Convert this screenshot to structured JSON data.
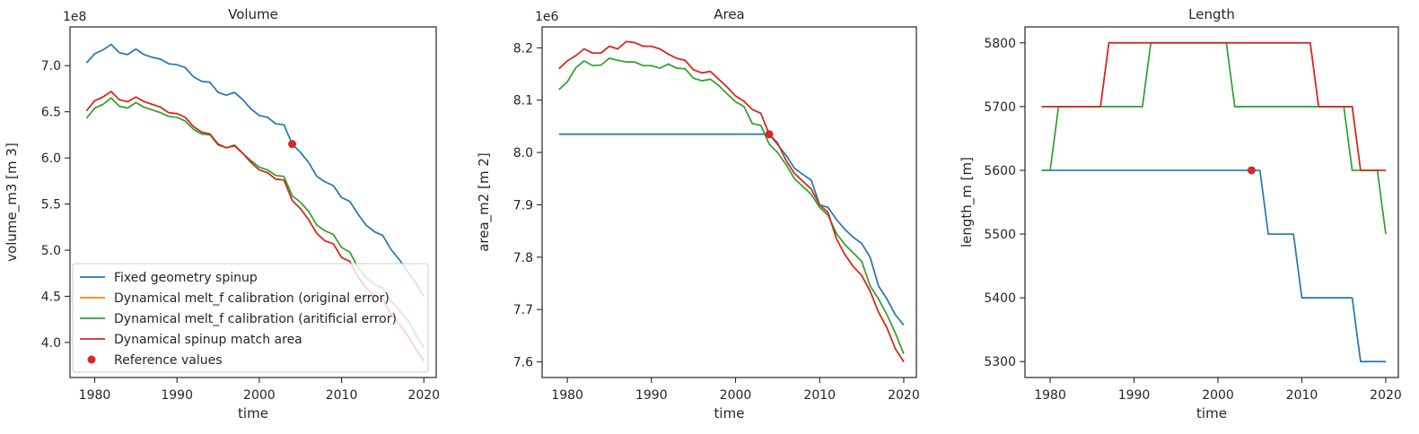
{
  "colors": {
    "fixed": "#1f77b4",
    "orig": "#ff7f0e",
    "artif": "#2ca02c",
    "match": "#d62728",
    "ref": "#d62728"
  },
  "legend": {
    "placement": "lower-left",
    "entries": [
      {
        "key": "fixed",
        "label": "Fixed geometry spinup"
      },
      {
        "key": "orig",
        "label": "Dynamical melt_f calibration (original error)"
      },
      {
        "key": "artif",
        "label": "Dynamical melt_f calibration (aritificial error)"
      },
      {
        "key": "match",
        "label": "Dynamical spinup match area"
      },
      {
        "key": "ref",
        "label": "Reference values"
      }
    ]
  },
  "chart_data": [
    {
      "type": "line",
      "title": "Volume",
      "xlabel": "time",
      "ylabel": "volume_m3 [m 3]",
      "offset_label": "1e8",
      "scale": 100000000,
      "xlim": [
        1977,
        2021.5
      ],
      "ylim": [
        3.62,
        7.42
      ],
      "xticks": [
        1980,
        1990,
        2000,
        2010,
        2020
      ],
      "yticks": [
        4.0,
        4.5,
        5.0,
        5.5,
        6.0,
        6.5,
        7.0
      ],
      "ytick_labels": [
        "4.0",
        "4.5",
        "5.0",
        "5.5",
        "6.0",
        "6.5",
        "7.0"
      ],
      "x": [
        1979,
        1980,
        1981,
        1982,
        1983,
        1984,
        1985,
        1986,
        1987,
        1988,
        1989,
        1990,
        1991,
        1992,
        1993,
        1994,
        1995,
        1996,
        1997,
        1998,
        1999,
        2000,
        2001,
        2002,
        2003,
        2004,
        2005,
        2006,
        2007,
        2008,
        2009,
        2010,
        2011,
        2012,
        2013,
        2014,
        2015,
        2016,
        2017,
        2018,
        2019,
        2020
      ],
      "series": [
        {
          "key": "fixed",
          "values": [
            7.03,
            7.13,
            7.17,
            7.23,
            7.14,
            7.12,
            7.18,
            7.12,
            7.09,
            7.07,
            7.02,
            7.01,
            6.98,
            6.88,
            6.83,
            6.82,
            6.71,
            6.68,
            6.71,
            6.63,
            6.53,
            6.46,
            6.44,
            6.37,
            6.36,
            6.15,
            6.06,
            5.95,
            5.8,
            5.74,
            5.7,
            5.57,
            5.53,
            5.39,
            5.27,
            5.2,
            5.16,
            5.01,
            4.9,
            4.77,
            4.65,
            4.5
          ]
        },
        {
          "key": "orig",
          "values": [
            6.51,
            6.62,
            6.66,
            6.72,
            6.63,
            6.61,
            6.66,
            6.61,
            6.58,
            6.55,
            6.49,
            6.48,
            6.44,
            6.34,
            6.28,
            6.26,
            6.15,
            6.11,
            6.13,
            6.05,
            5.95,
            5.87,
            5.84,
            5.77,
            5.76,
            5.54,
            5.45,
            5.33,
            5.18,
            5.1,
            5.07,
            4.92,
            4.88,
            4.71,
            4.59,
            4.51,
            4.47,
            4.31,
            4.2,
            4.08,
            3.93,
            3.8
          ]
        },
        {
          "key": "artif",
          "values": [
            6.43,
            6.54,
            6.58,
            6.65,
            6.56,
            6.54,
            6.6,
            6.55,
            6.52,
            6.49,
            6.45,
            6.44,
            6.4,
            6.31,
            6.26,
            6.25,
            6.14,
            6.11,
            6.14,
            6.05,
            5.97,
            5.9,
            5.87,
            5.81,
            5.8,
            5.59,
            5.52,
            5.42,
            5.27,
            5.21,
            5.17,
            5.03,
            4.98,
            4.81,
            4.7,
            4.63,
            4.59,
            4.45,
            4.35,
            4.25,
            4.09,
            3.94
          ]
        },
        {
          "key": "match",
          "values": [
            6.51,
            6.62,
            6.66,
            6.72,
            6.63,
            6.61,
            6.66,
            6.61,
            6.58,
            6.55,
            6.49,
            6.48,
            6.44,
            6.34,
            6.28,
            6.26,
            6.15,
            6.11,
            6.13,
            6.05,
            5.95,
            5.87,
            5.84,
            5.77,
            5.76,
            5.54,
            5.45,
            5.33,
            5.18,
            5.1,
            5.07,
            4.92,
            4.88,
            4.71,
            4.59,
            4.51,
            4.47,
            4.31,
            4.2,
            4.08,
            3.93,
            3.8
          ]
        }
      ],
      "reference": {
        "x": 2004,
        "y": 6.15
      }
    },
    {
      "type": "line",
      "title": "Area",
      "xlabel": "time",
      "ylabel": "area_m2 [m 2]",
      "offset_label": "1e6",
      "scale": 1000000,
      "xlim": [
        1977,
        2021.5
      ],
      "ylim": [
        7.57,
        8.24
      ],
      "xticks": [
        1980,
        1990,
        2000,
        2010,
        2020
      ],
      "yticks": [
        7.6,
        7.7,
        7.8,
        7.9,
        8.0,
        8.1,
        8.2
      ],
      "ytick_labels": [
        "7.6",
        "7.7",
        "7.8",
        "7.9",
        "8.0",
        "8.1",
        "8.2"
      ],
      "x": [
        1979,
        1980,
        1981,
        1982,
        1983,
        1984,
        1985,
        1986,
        1987,
        1988,
        1989,
        1990,
        1991,
        1992,
        1993,
        1994,
        1995,
        1996,
        1997,
        1998,
        1999,
        2000,
        2001,
        2002,
        2003,
        2004,
        2005,
        2006,
        2007,
        2008,
        2009,
        2010,
        2011,
        2012,
        2013,
        2014,
        2015,
        2016,
        2017,
        2018,
        2019,
        2020
      ],
      "series": [
        {
          "key": "fixed",
          "values": [
            8.035,
            8.035,
            8.035,
            8.035,
            8.035,
            8.035,
            8.035,
            8.035,
            8.035,
            8.035,
            8.035,
            8.035,
            8.035,
            8.035,
            8.035,
            8.035,
            8.035,
            8.035,
            8.035,
            8.035,
            8.035,
            8.035,
            8.035,
            8.035,
            8.035,
            8.035,
            8.015,
            7.995,
            7.97,
            7.958,
            7.947,
            7.9,
            7.895,
            7.872,
            7.853,
            7.838,
            7.826,
            7.8,
            7.745,
            7.72,
            7.69,
            7.67
          ]
        },
        {
          "key": "orig",
          "values": [
            8.16,
            8.175,
            8.185,
            8.198,
            8.19,
            8.19,
            8.203,
            8.198,
            8.212,
            8.21,
            8.203,
            8.203,
            8.198,
            8.188,
            8.18,
            8.176,
            8.158,
            8.152,
            8.155,
            8.14,
            8.125,
            8.108,
            8.098,
            8.082,
            8.075,
            8.035,
            8.018,
            7.985,
            7.96,
            7.945,
            7.93,
            7.9,
            7.885,
            7.835,
            7.805,
            7.782,
            7.765,
            7.735,
            7.695,
            7.665,
            7.625,
            7.6
          ]
        },
        {
          "key": "artif",
          "values": [
            8.12,
            8.135,
            8.162,
            8.175,
            8.166,
            8.167,
            8.18,
            8.176,
            8.173,
            8.173,
            8.166,
            8.166,
            8.161,
            8.169,
            8.161,
            8.16,
            8.142,
            8.137,
            8.14,
            8.128,
            8.112,
            8.097,
            8.088,
            8.055,
            8.052,
            8.016,
            8.0,
            7.977,
            7.95,
            7.935,
            7.92,
            7.895,
            7.88,
            7.845,
            7.824,
            7.808,
            7.792,
            7.745,
            7.72,
            7.69,
            7.655,
            7.615
          ]
        },
        {
          "key": "match",
          "values": [
            8.16,
            8.175,
            8.185,
            8.198,
            8.19,
            8.19,
            8.203,
            8.198,
            8.212,
            8.21,
            8.203,
            8.203,
            8.198,
            8.188,
            8.18,
            8.176,
            8.158,
            8.152,
            8.155,
            8.14,
            8.125,
            8.108,
            8.098,
            8.082,
            8.075,
            8.035,
            8.018,
            7.985,
            7.96,
            7.945,
            7.93,
            7.9,
            7.885,
            7.835,
            7.805,
            7.782,
            7.765,
            7.735,
            7.695,
            7.665,
            7.625,
            7.6
          ]
        }
      ],
      "reference": {
        "x": 2004,
        "y": 8.035
      }
    },
    {
      "type": "line",
      "title": "Length",
      "xlabel": "time",
      "ylabel": "length_m [m]",
      "offset_label": "",
      "scale": 1,
      "xlim": [
        1977,
        2021.5
      ],
      "ylim": [
        5275,
        5825
      ],
      "xticks": [
        1980,
        1990,
        2000,
        2010,
        2020
      ],
      "yticks": [
        5300,
        5400,
        5500,
        5600,
        5700,
        5800
      ],
      "ytick_labels": [
        "5300",
        "5400",
        "5500",
        "5600",
        "5700",
        "5800"
      ],
      "x": [
        1979,
        1980,
        1981,
        1982,
        1983,
        1984,
        1985,
        1986,
        1987,
        1988,
        1989,
        1990,
        1991,
        1992,
        1993,
        1994,
        1995,
        1996,
        1997,
        1998,
        1999,
        2000,
        2001,
        2002,
        2003,
        2004,
        2005,
        2006,
        2007,
        2008,
        2009,
        2010,
        2011,
        2012,
        2013,
        2014,
        2015,
        2016,
        2017,
        2018,
        2019,
        2020
      ],
      "series": [
        {
          "key": "fixed",
          "values": [
            5600,
            5600,
            5600,
            5600,
            5600,
            5600,
            5600,
            5600,
            5600,
            5600,
            5600,
            5600,
            5600,
            5600,
            5600,
            5600,
            5600,
            5600,
            5600,
            5600,
            5600,
            5600,
            5600,
            5600,
            5600,
            5600,
            5600,
            5500,
            5500,
            5500,
            5500,
            5400,
            5400,
            5400,
            5400,
            5400,
            5400,
            5400,
            5300,
            5300,
            5300,
            5300
          ]
        },
        {
          "key": "orig",
          "values": [
            5700,
            5700,
            5700,
            5700,
            5700,
            5700,
            5700,
            5700,
            5800,
            5800,
            5800,
            5800,
            5800,
            5800,
            5800,
            5800,
            5800,
            5800,
            5800,
            5800,
            5800,
            5800,
            5800,
            5800,
            5800,
            5800,
            5800,
            5800,
            5800,
            5800,
            5800,
            5800,
            5800,
            5700,
            5700,
            5700,
            5700,
            5700,
            5600,
            5600,
            5600,
            5600
          ]
        },
        {
          "key": "artif",
          "values": [
            5600,
            5600,
            5700,
            5700,
            5700,
            5700,
            5700,
            5700,
            5700,
            5700,
            5700,
            5700,
            5700,
            5800,
            5800,
            5800,
            5800,
            5800,
            5800,
            5800,
            5800,
            5800,
            5800,
            5700,
            5700,
            5700,
            5700,
            5700,
            5700,
            5700,
            5700,
            5700,
            5700,
            5700,
            5700,
            5700,
            5700,
            5600,
            5600,
            5600,
            5600,
            5500
          ]
        },
        {
          "key": "match",
          "values": [
            5700,
            5700,
            5700,
            5700,
            5700,
            5700,
            5700,
            5700,
            5800,
            5800,
            5800,
            5800,
            5800,
            5800,
            5800,
            5800,
            5800,
            5800,
            5800,
            5800,
            5800,
            5800,
            5800,
            5800,
            5800,
            5800,
            5800,
            5800,
            5800,
            5800,
            5800,
            5800,
            5800,
            5700,
            5700,
            5700,
            5700,
            5700,
            5600,
            5600,
            5600,
            5600
          ]
        }
      ],
      "reference": {
        "x": 2004,
        "y": 5600
      }
    }
  ]
}
